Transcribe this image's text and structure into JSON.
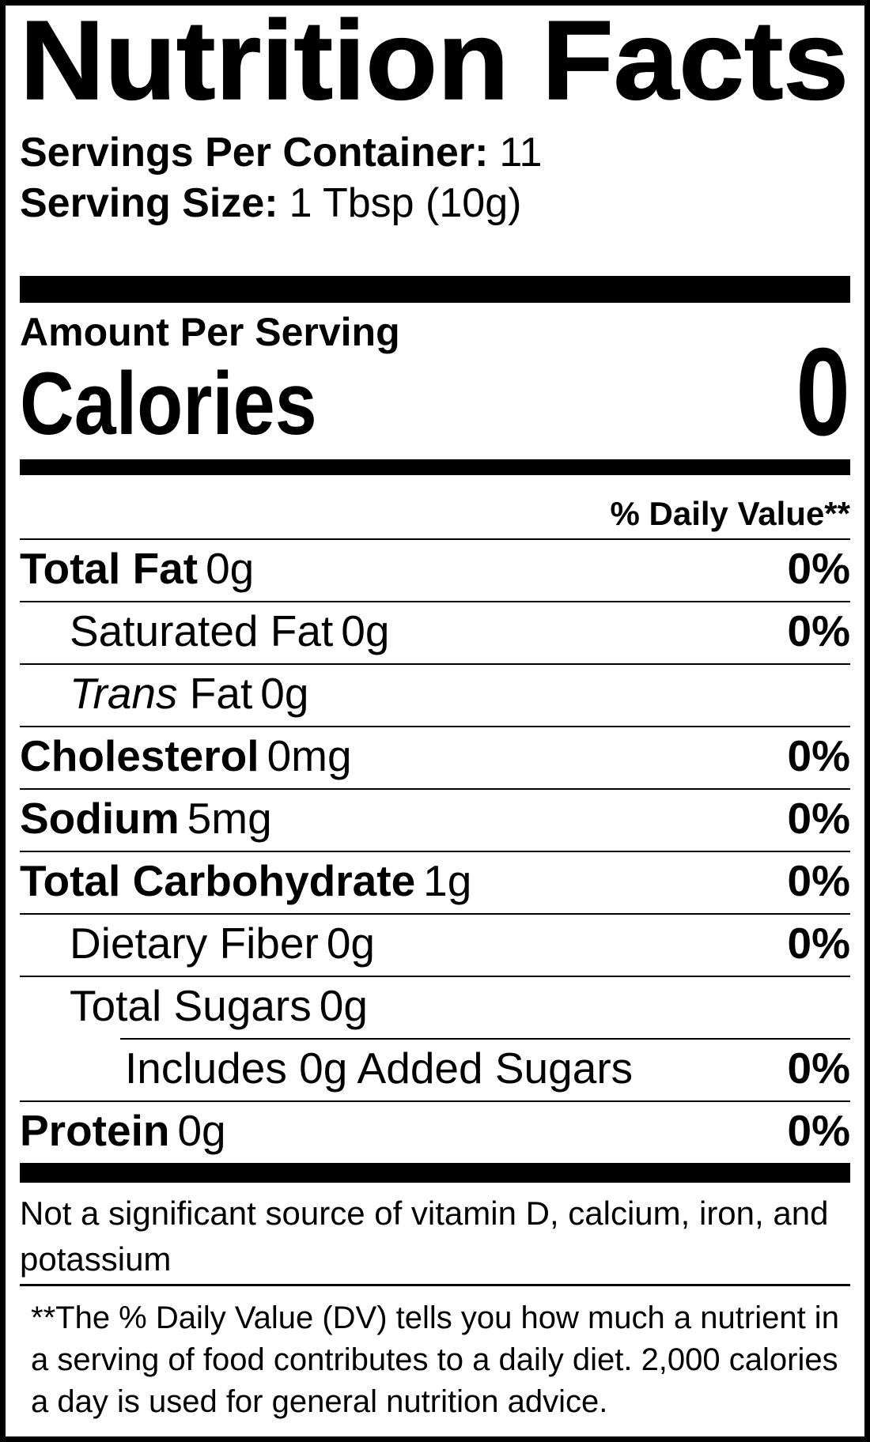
{
  "label": {
    "title": "Nutrition Facts",
    "servings_per_container_label": "Servings Per Container:",
    "servings_per_container_value": "11",
    "serving_size_label": "Serving Size:",
    "serving_size_value": "1 Tbsp (10g)",
    "amount_per_serving": "Amount Per Serving",
    "calories_label": "Calories",
    "calories_value": "0",
    "daily_value_header": "% Daily Value**",
    "rows": [
      {
        "name": "Total Fat",
        "amount": "0g",
        "dv": "0%",
        "indent": 0,
        "bold": true
      },
      {
        "name": "Saturated Fat",
        "amount": "0g",
        "dv": "0%",
        "indent": 1,
        "bold": false
      },
      {
        "name_italic": "Trans",
        "name": "Fat",
        "amount": "0g",
        "dv": "",
        "indent": 1,
        "bold": false
      },
      {
        "name": "Cholesterol",
        "amount": "0mg",
        "dv": "0%",
        "indent": 0,
        "bold": true
      },
      {
        "name": "Sodium",
        "amount": "5mg",
        "dv": "0%",
        "indent": 0,
        "bold": true
      },
      {
        "name": "Total Carbohydrate",
        "amount": "1g",
        "dv": "0%",
        "indent": 0,
        "bold": true
      },
      {
        "name": "Dietary Fiber",
        "amount": "0g",
        "dv": "0%",
        "indent": 1,
        "bold": false
      },
      {
        "name": "Total Sugars",
        "amount": "0g",
        "dv": "",
        "indent": 1,
        "bold": false,
        "no_border": true
      },
      {
        "name": "Includes 0g Added Sugars",
        "amount": "",
        "dv": "0%",
        "indent": 2,
        "bold": false,
        "partial_rule_before": true
      },
      {
        "name": "Protein",
        "amount": "0g",
        "dv": "0%",
        "indent": 0,
        "bold": true,
        "no_border": true
      }
    ],
    "not_significant_text": "Not a significant source of vitamin D, calcium, iron, and potassium",
    "footnote_text": "**The % Daily Value (DV) tells you how much a nutrient in a serving of food contributes to a daily diet. 2,000 calories a day is used for general nutrition advice.",
    "colors": {
      "ink": "#000000",
      "paper": "#ffffff"
    }
  }
}
